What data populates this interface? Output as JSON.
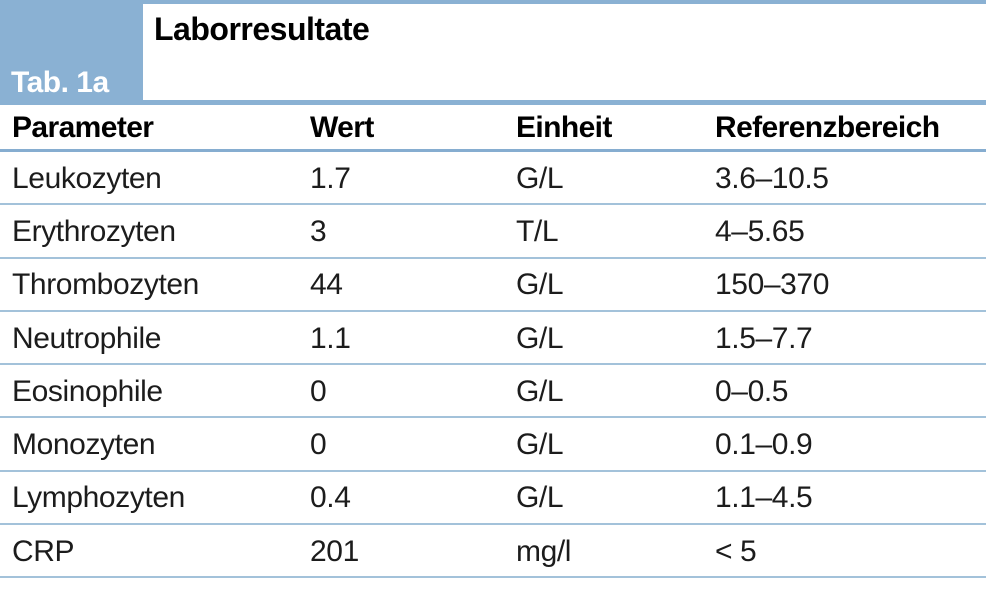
{
  "header": {
    "tab_label": "Tab. 1a",
    "title": "Laborresultate"
  },
  "colors": {
    "accent_blue": "#8ab1d3",
    "separator_blue": "#a3c2da",
    "header_rule_blue": "#86add0"
  },
  "table": {
    "columns": [
      "Parameter",
      "Wert",
      "Einheit",
      "Referenzbereich"
    ],
    "rows": [
      {
        "parameter": "Leukozyten",
        "wert": "1.7",
        "einheit": "G/L",
        "referenzbereich": "3.6–10.5"
      },
      {
        "parameter": "Erythrozyten",
        "wert": "3",
        "einheit": "T/L",
        "referenzbereich": "4–5.65"
      },
      {
        "parameter": "Thrombozyten",
        "wert": "44",
        "einheit": "G/L",
        "referenzbereich": "150–370"
      },
      {
        "parameter": "Neutrophile",
        "wert": "1.1",
        "einheit": "G/L",
        "referenzbereich": "1.5–7.7"
      },
      {
        "parameter": "Eosinophile",
        "wert": "0",
        "einheit": "G/L",
        "referenzbereich": "0–0.5"
      },
      {
        "parameter": "Monozyten",
        "wert": "0",
        "einheit": "G/L",
        "referenzbereich": "0.1–0.9"
      },
      {
        "parameter": "Lymphozyten",
        "wert": "0.4",
        "einheit": "G/L",
        "referenzbereich": "1.1–4.5"
      },
      {
        "parameter": "CRP",
        "wert": "201",
        "einheit": "mg/l",
        "referenzbereich": "< 5"
      }
    ]
  }
}
